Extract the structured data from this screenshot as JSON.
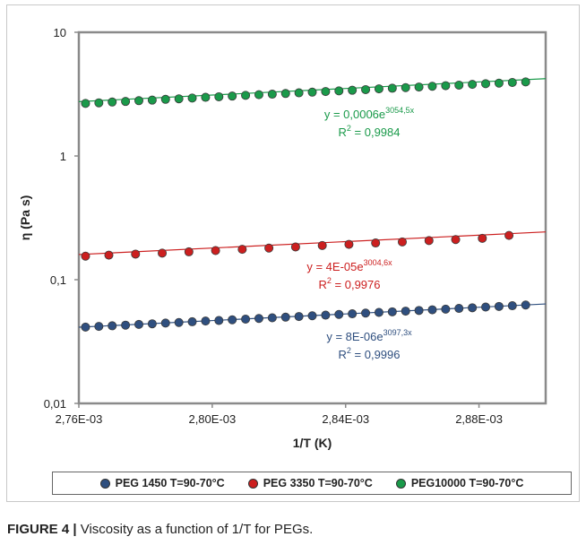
{
  "chart_data": {
    "type": "scatter",
    "xlabel": "1/T (K)",
    "ylabel": "η (Pa s)",
    "yscale": "log",
    "xlim": [
      0.00276,
      0.0029
    ],
    "ylim": [
      0.01,
      10
    ],
    "x_tick_labels": [
      "2,76E-03",
      "2,80E-03",
      "2,84E-03",
      "2,88E-03"
    ],
    "x_tick_values": [
      0.00276,
      0.0028,
      0.00284,
      0.00288
    ],
    "y_tick_labels": [
      "0,01",
      "0,1",
      "1",
      "10"
    ],
    "y_tick_values": [
      0.01,
      0.1,
      1,
      10
    ],
    "legend_position": "bottom",
    "series": [
      {
        "name": "PEG 1450 T=90-70°C",
        "color": "#2f4f7f",
        "fit": {
          "a": 8e-06,
          "b": 3097.3
        },
        "equation_prefix": "y = 8E-06e",
        "equation_exp": "3097,3x",
        "r2_prefix": "R",
        "r2_value": " = 0,9996",
        "x": [
          0.002762,
          0.002766,
          0.00277,
          0.002774,
          0.002778,
          0.002782,
          0.002786,
          0.00279,
          0.002794,
          0.002798,
          0.002802,
          0.002806,
          0.00281,
          0.002814,
          0.002818,
          0.002822,
          0.002826,
          0.00283,
          0.002834,
          0.002838,
          0.002842,
          0.002846,
          0.00285,
          0.002854,
          0.002858,
          0.002862,
          0.002866,
          0.00287,
          0.002874,
          0.002878,
          0.002882,
          0.002886,
          0.00289,
          0.002894
        ],
        "y": [
          0.0414,
          0.0419,
          0.0424,
          0.0429,
          0.0435,
          0.044,
          0.0446,
          0.0451,
          0.0457,
          0.0463,
          0.0468,
          0.0474,
          0.048,
          0.0486,
          0.0492,
          0.0498,
          0.0504,
          0.0511,
          0.0517,
          0.0524,
          0.053,
          0.0537,
          0.0544,
          0.055,
          0.0557,
          0.0564,
          0.0571,
          0.0578,
          0.0586,
          0.0593,
          0.0601,
          0.0608,
          0.0616,
          0.0624
        ]
      },
      {
        "name": "PEG 3350 T=90-70°C",
        "color": "#cc1f1f",
        "fit": {
          "a": 4e-05,
          "b": 3004.6
        },
        "equation_prefix": "y = 4E-05e",
        "equation_exp": "3004,6x",
        "r2_prefix": "R",
        "r2_value": " = 0,9976",
        "x": [
          0.002762,
          0.002769,
          0.002777,
          0.002785,
          0.002793,
          0.002801,
          0.002809,
          0.002817,
          0.002825,
          0.002833,
          0.002841,
          0.002849,
          0.002857,
          0.002865,
          0.002873,
          0.002881,
          0.002889
        ],
        "y": [
          0.155,
          0.158,
          0.161,
          0.164,
          0.168,
          0.172,
          0.176,
          0.18,
          0.184,
          0.189,
          0.193,
          0.198,
          0.202,
          0.207,
          0.211,
          0.216,
          0.228
        ]
      },
      {
        "name": "PEG10000 T=90-70°C",
        "color": "#1a9a4a",
        "fit": {
          "a": 0.0006,
          "b": 3054.5
        },
        "equation_prefix": "y = 0,0006e",
        "equation_exp": "3054,5x",
        "r2_prefix": "R",
        "r2_value": " = 0,9984",
        "x": [
          0.002762,
          0.002766,
          0.00277,
          0.002774,
          0.002778,
          0.002782,
          0.002786,
          0.00279,
          0.002794,
          0.002798,
          0.002802,
          0.002806,
          0.00281,
          0.002814,
          0.002818,
          0.002822,
          0.002826,
          0.00283,
          0.002834,
          0.002838,
          0.002842,
          0.002846,
          0.00285,
          0.002854,
          0.002858,
          0.002862,
          0.002866,
          0.00287,
          0.002874,
          0.002878,
          0.002882,
          0.002886,
          0.00289,
          0.002894
        ],
        "y": [
          2.66,
          2.69,
          2.73,
          2.76,
          2.8,
          2.83,
          2.87,
          2.9,
          2.94,
          2.98,
          3.01,
          3.05,
          3.09,
          3.13,
          3.16,
          3.2,
          3.24,
          3.28,
          3.32,
          3.36,
          3.4,
          3.44,
          3.49,
          3.53,
          3.57,
          3.61,
          3.66,
          3.7,
          3.74,
          3.79,
          3.84,
          3.88,
          3.93,
          3.97
        ]
      }
    ]
  },
  "caption": {
    "label": "FIGURE 4 |",
    "text": " Viscosity as a function of 1/T for PEGs."
  }
}
